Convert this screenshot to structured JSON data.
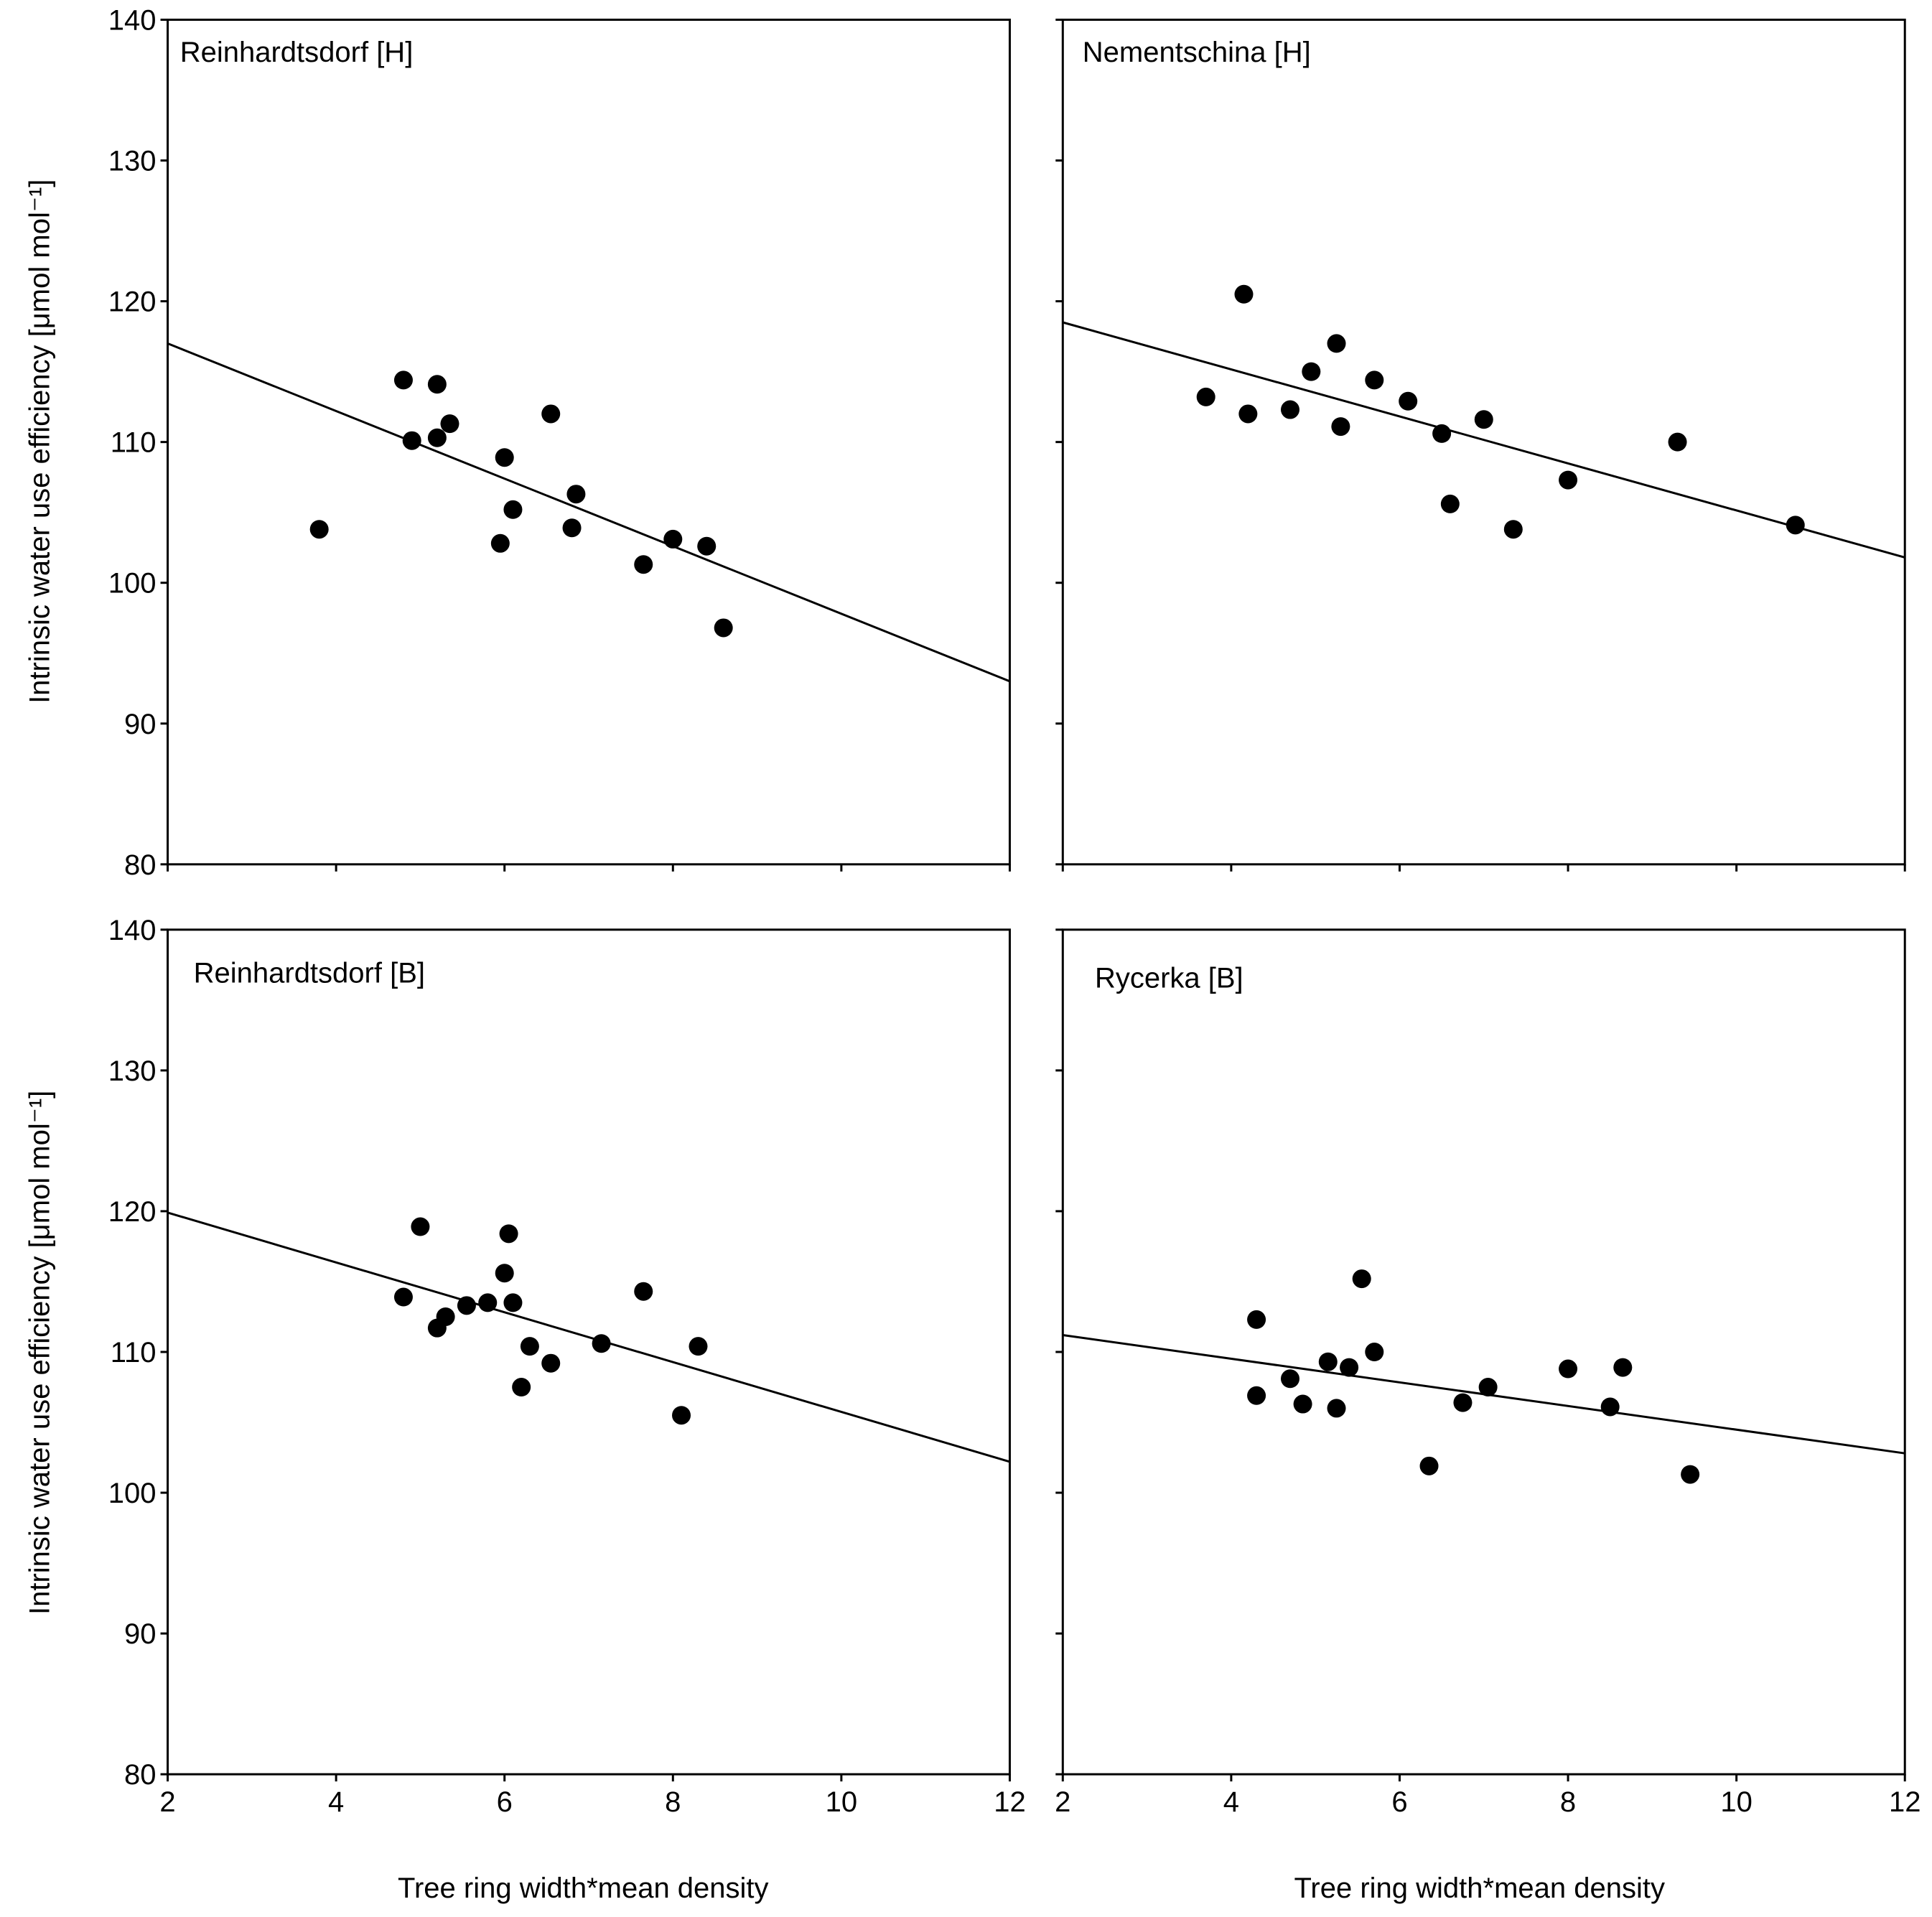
{
  "chart_data": [
    {
      "type": "scatter",
      "panel_label": "Reinhardtsdorf [H]",
      "xlabel": "",
      "ylabel": "Intrinsic water use efficiency [μmol mol⁻¹]",
      "xlim": [
        2,
        12
      ],
      "ylim": [
        80,
        140
      ],
      "xticks": [],
      "yticks": [
        "140",
        "130",
        "120",
        "110",
        "100",
        "90",
        "80"
      ],
      "regression": {
        "x": [
          2,
          12
        ],
        "y": [
          117,
          93
        ]
      },
      "points": [
        {
          "x": 3.8,
          "y": 103.8
        },
        {
          "x": 4.8,
          "y": 114.4
        },
        {
          "x": 4.9,
          "y": 110.1
        },
        {
          "x": 5.2,
          "y": 114.1
        },
        {
          "x": 5.2,
          "y": 110.3
        },
        {
          "x": 5.35,
          "y": 111.3
        },
        {
          "x": 6.0,
          "y": 108.9
        },
        {
          "x": 5.95,
          "y": 102.8
        },
        {
          "x": 6.1,
          "y": 105.2
        },
        {
          "x": 6.55,
          "y": 112.0
        },
        {
          "x": 6.8,
          "y": 103.9
        },
        {
          "x": 6.85,
          "y": 106.3
        },
        {
          "x": 7.65,
          "y": 101.3
        },
        {
          "x": 8.0,
          "y": 103.1
        },
        {
          "x": 8.4,
          "y": 102.6
        },
        {
          "x": 8.6,
          "y": 96.8
        }
      ]
    },
    {
      "type": "scatter",
      "panel_label": "Nementschina [H]",
      "xlabel": "",
      "ylabel": "",
      "xlim": [
        2,
        12
      ],
      "ylim": [
        80,
        140
      ],
      "xticks": [],
      "yticks": [],
      "regression": {
        "x": [
          2,
          12
        ],
        "y": [
          118.5,
          101.8
        ]
      },
      "points": [
        {
          "x": 3.7,
          "y": 113.2
        },
        {
          "x": 4.15,
          "y": 120.5
        },
        {
          "x": 4.2,
          "y": 112.0
        },
        {
          "x": 4.7,
          "y": 112.3
        },
        {
          "x": 4.95,
          "y": 115.0
        },
        {
          "x": 5.25,
          "y": 117.0
        },
        {
          "x": 5.3,
          "y": 111.1
        },
        {
          "x": 5.7,
          "y": 114.4
        },
        {
          "x": 6.1,
          "y": 112.9
        },
        {
          "x": 6.5,
          "y": 110.6
        },
        {
          "x": 6.6,
          "y": 105.6
        },
        {
          "x": 7.0,
          "y": 111.6
        },
        {
          "x": 7.35,
          "y": 103.8
        },
        {
          "x": 8.0,
          "y": 107.3
        },
        {
          "x": 9.3,
          "y": 110.0
        },
        {
          "x": 10.7,
          "y": 104.1
        }
      ]
    },
    {
      "type": "scatter",
      "panel_label": "Reinhardtsdorf [B]",
      "xlabel": "Tree ring width*mean density",
      "ylabel": "Intrinsic water use efficiency [μmol mol⁻¹]",
      "xlim": [
        2,
        12
      ],
      "ylim": [
        80,
        140
      ],
      "xticks": [
        "2",
        "4",
        "6",
        "8",
        "10",
        "12"
      ],
      "yticks": [
        "140",
        "130",
        "120",
        "110",
        "100",
        "90",
        "80"
      ],
      "regression": {
        "x": [
          2,
          12
        ],
        "y": [
          119.9,
          102.2
        ]
      },
      "points": [
        {
          "x": 4.8,
          "y": 113.9
        },
        {
          "x": 5.0,
          "y": 118.9
        },
        {
          "x": 5.2,
          "y": 111.7
        },
        {
          "x": 5.3,
          "y": 112.5
        },
        {
          "x": 5.55,
          "y": 113.3
        },
        {
          "x": 5.8,
          "y": 113.5
        },
        {
          "x": 6.0,
          "y": 115.6
        },
        {
          "x": 6.05,
          "y": 118.4
        },
        {
          "x": 6.1,
          "y": 113.5
        },
        {
          "x": 6.2,
          "y": 107.5
        },
        {
          "x": 6.3,
          "y": 110.4
        },
        {
          "x": 6.55,
          "y": 109.2
        },
        {
          "x": 7.15,
          "y": 110.6
        },
        {
          "x": 7.65,
          "y": 114.3
        },
        {
          "x": 8.1,
          "y": 105.5
        },
        {
          "x": 8.3,
          "y": 110.4
        }
      ]
    },
    {
      "type": "scatter",
      "panel_label": "Rycerka [B]",
      "xlabel": "Tree ring width*mean density",
      "ylabel": "",
      "xlim": [
        2,
        12
      ],
      "ylim": [
        80,
        140
      ],
      "xticks": [
        "2",
        "4",
        "6",
        "8",
        "10",
        "12"
      ],
      "yticks": [],
      "regression": {
        "x": [
          2,
          12
        ],
        "y": [
          111.2,
          102.8
        ]
      },
      "points": [
        {
          "x": 4.3,
          "y": 112.3
        },
        {
          "x": 4.3,
          "y": 106.9
        },
        {
          "x": 4.7,
          "y": 108.1
        },
        {
          "x": 4.85,
          "y": 106.3
        },
        {
          "x": 5.15,
          "y": 109.3
        },
        {
          "x": 5.25,
          "y": 106.0
        },
        {
          "x": 5.4,
          "y": 108.9
        },
        {
          "x": 5.55,
          "y": 115.2
        },
        {
          "x": 5.7,
          "y": 110.0
        },
        {
          "x": 6.35,
          "y": 101.9
        },
        {
          "x": 6.75,
          "y": 106.4
        },
        {
          "x": 7.05,
          "y": 107.5
        },
        {
          "x": 8.0,
          "y": 108.8
        },
        {
          "x": 8.5,
          "y": 106.1
        },
        {
          "x": 8.65,
          "y": 108.9
        },
        {
          "x": 9.45,
          "y": 101.3
        }
      ]
    }
  ]
}
